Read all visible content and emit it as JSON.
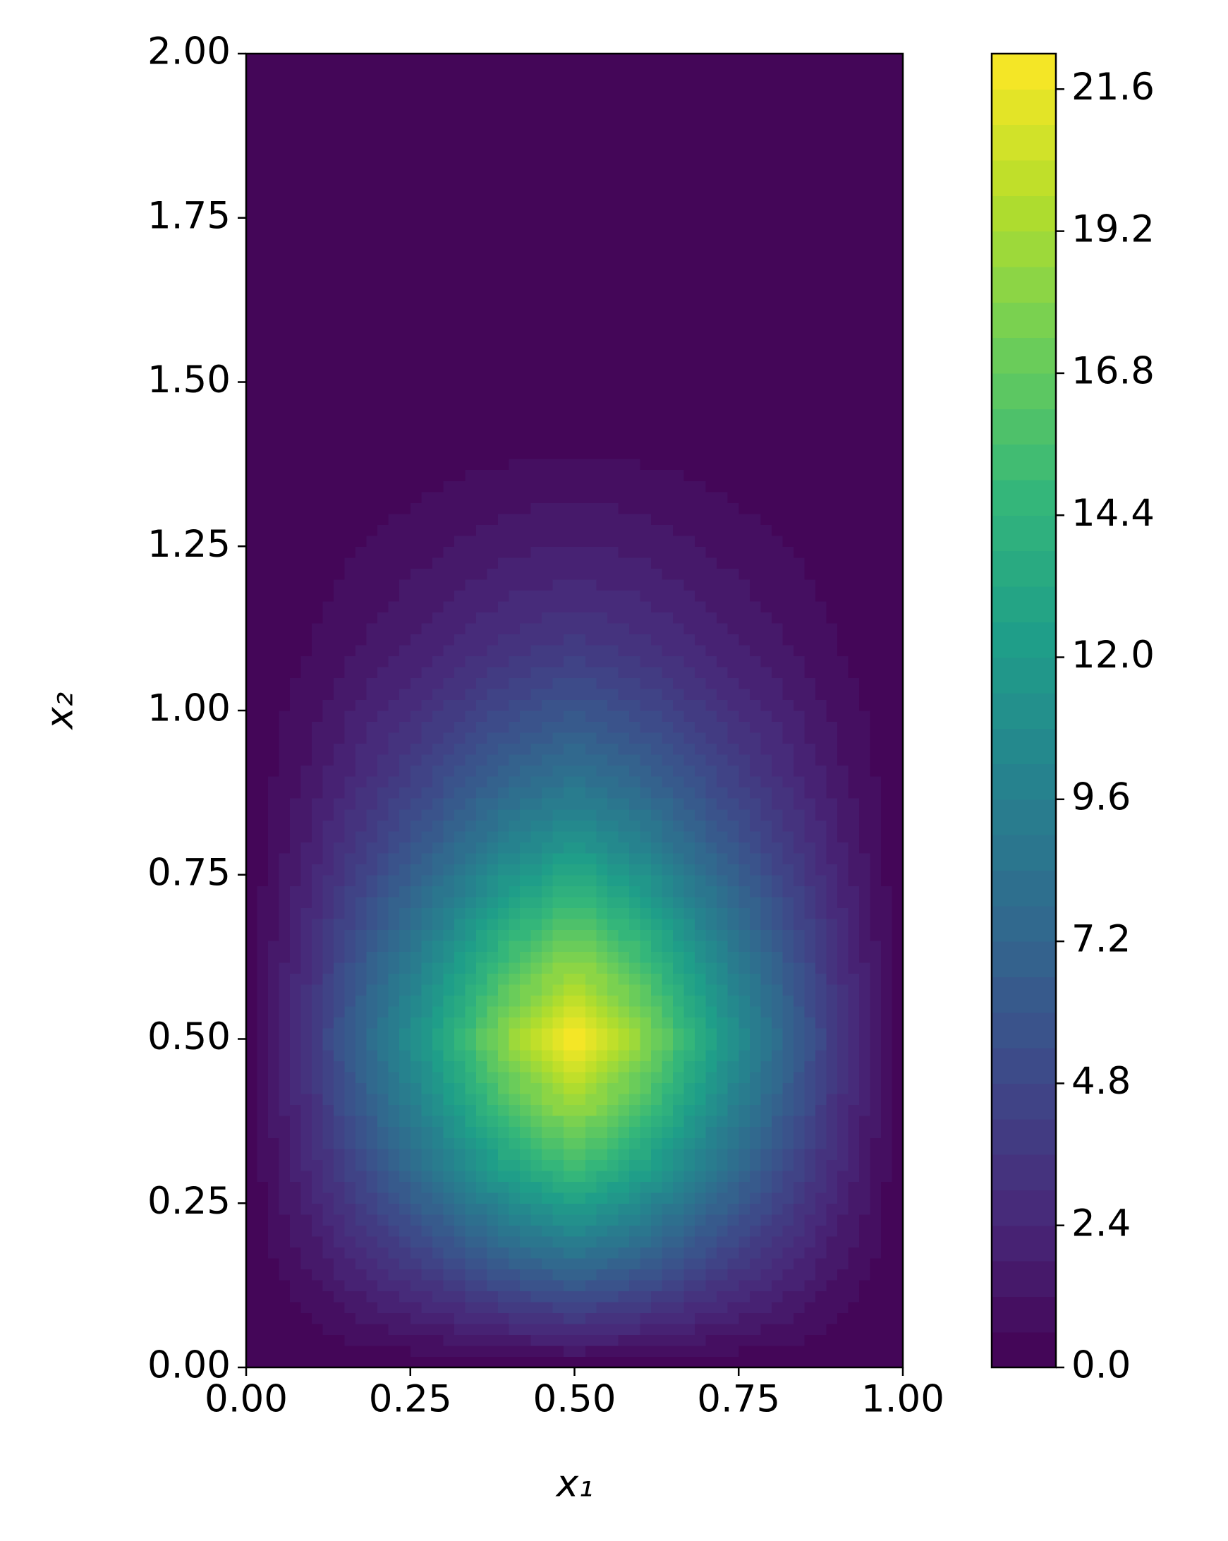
{
  "chart_data": {
    "type": "contour",
    "xlabel": "x₁",
    "ylabel": "x₂",
    "x": [
      0,
      0.1,
      0.2,
      0.3,
      0.4,
      0.5,
      0.6,
      0.7,
      0.8,
      0.9,
      1.0
    ],
    "y": [
      0,
      0.1,
      0.2,
      0.3,
      0.4,
      0.5,
      0.6,
      0.7,
      0.8,
      0.9,
      1.0,
      1.1,
      1.2,
      1.3,
      1.4,
      1.5,
      1.6,
      1.7,
      1.8,
      1.9,
      2.0
    ],
    "z": [
      [
        0,
        0,
        0,
        0,
        0,
        0,
        0,
        0,
        0,
        0,
        0
      ],
      [
        0,
        0.8,
        1.9,
        2.9,
        4.1,
        4.9,
        4.1,
        2.9,
        1.9,
        0.8,
        0
      ],
      [
        0,
        1.7,
        3.8,
        6.0,
        8.4,
        10.0,
        8.4,
        6.0,
        3.8,
        1.7,
        0
      ],
      [
        0,
        2.6,
        5.7,
        9.1,
        12.7,
        15.1,
        12.7,
        9.1,
        5.7,
        2.6,
        0
      ],
      [
        0,
        3.2,
        7.3,
        11.5,
        16.0,
        19.1,
        16.0,
        11.5,
        7.3,
        3.2,
        0
      ],
      [
        0,
        3.8,
        8.4,
        13.3,
        18.6,
        22.2,
        18.6,
        13.3,
        8.4,
        3.8,
        0
      ],
      [
        0,
        3.2,
        7.3,
        11.5,
        16.0,
        19.1,
        16.0,
        11.5,
        7.3,
        3.2,
        0
      ],
      [
        0,
        2.6,
        5.9,
        9.3,
        13.1,
        15.5,
        13.1,
        9.3,
        5.9,
        2.6,
        0
      ],
      [
        0,
        2.0,
        4.4,
        6.9,
        9.7,
        11.5,
        9.7,
        6.9,
        4.4,
        2.0,
        0
      ],
      [
        0,
        1.4,
        3.2,
        5.1,
        7.1,
        8.4,
        7.1,
        5.1,
        3.2,
        1.4,
        0
      ],
      [
        0,
        1.0,
        2.3,
        3.6,
        5.0,
        6.0,
        5.0,
        3.6,
        2.3,
        1.0,
        0
      ],
      [
        0,
        0.6,
        1.4,
        2.3,
        3.2,
        3.8,
        3.2,
        2.3,
        1.4,
        0.6,
        0
      ],
      [
        0,
        0.4,
        0.9,
        1.5,
        2.1,
        2.4,
        2.1,
        1.5,
        0.9,
        0.4,
        0
      ],
      [
        0,
        0.2,
        0.5,
        0.8,
        1.2,
        1.4,
        1.2,
        0.8,
        0.5,
        0.2,
        0
      ],
      [
        0,
        0.1,
        0.2,
        0.3,
        0.4,
        0.5,
        0.4,
        0.3,
        0.2,
        0.1,
        0
      ],
      [
        0,
        0,
        0,
        0,
        0,
        0,
        0,
        0,
        0,
        0,
        0
      ],
      [
        0,
        0,
        0,
        0,
        0,
        0,
        0,
        0,
        0,
        0,
        0
      ],
      [
        0,
        0,
        0,
        0,
        0,
        0,
        0,
        0,
        0,
        0,
        0
      ],
      [
        0,
        0,
        0,
        0,
        0,
        0,
        0,
        0,
        0,
        0,
        0
      ],
      [
        0,
        0,
        0,
        0,
        0,
        0,
        0,
        0,
        0,
        0,
        0
      ],
      [
        0,
        0,
        0,
        0,
        0,
        0,
        0,
        0,
        0,
        0,
        0
      ]
    ],
    "xlim": [
      0,
      1
    ],
    "ylim": [
      0,
      2
    ],
    "zlim": [
      0,
      22.2
    ],
    "xticks": [
      {
        "value": 0,
        "label": "0.00"
      },
      {
        "value": 0.25,
        "label": "0.25"
      },
      {
        "value": 0.5,
        "label": "0.50"
      },
      {
        "value": 0.75,
        "label": "0.75"
      },
      {
        "value": 1,
        "label": "1.00"
      }
    ],
    "yticks": [
      {
        "value": 0,
        "label": "0.00"
      },
      {
        "value": 0.25,
        "label": "0.25"
      },
      {
        "value": 0.5,
        "label": "0.50"
      },
      {
        "value": 0.75,
        "label": "0.75"
      },
      {
        "value": 1,
        "label": "1.00"
      },
      {
        "value": 1.25,
        "label": "1.25"
      },
      {
        "value": 1.5,
        "label": "1.50"
      },
      {
        "value": 1.75,
        "label": "1.75"
      },
      {
        "value": 2,
        "label": "2.00"
      }
    ],
    "zticks": [
      {
        "value": 0,
        "label": "0.0"
      },
      2.4,
      4.8,
      7.2,
      9.6,
      {
        "value": 12,
        "label": "12.0"
      },
      14.4,
      16.8,
      19.2,
      21.6
    ],
    "colormap": "viridis"
  }
}
